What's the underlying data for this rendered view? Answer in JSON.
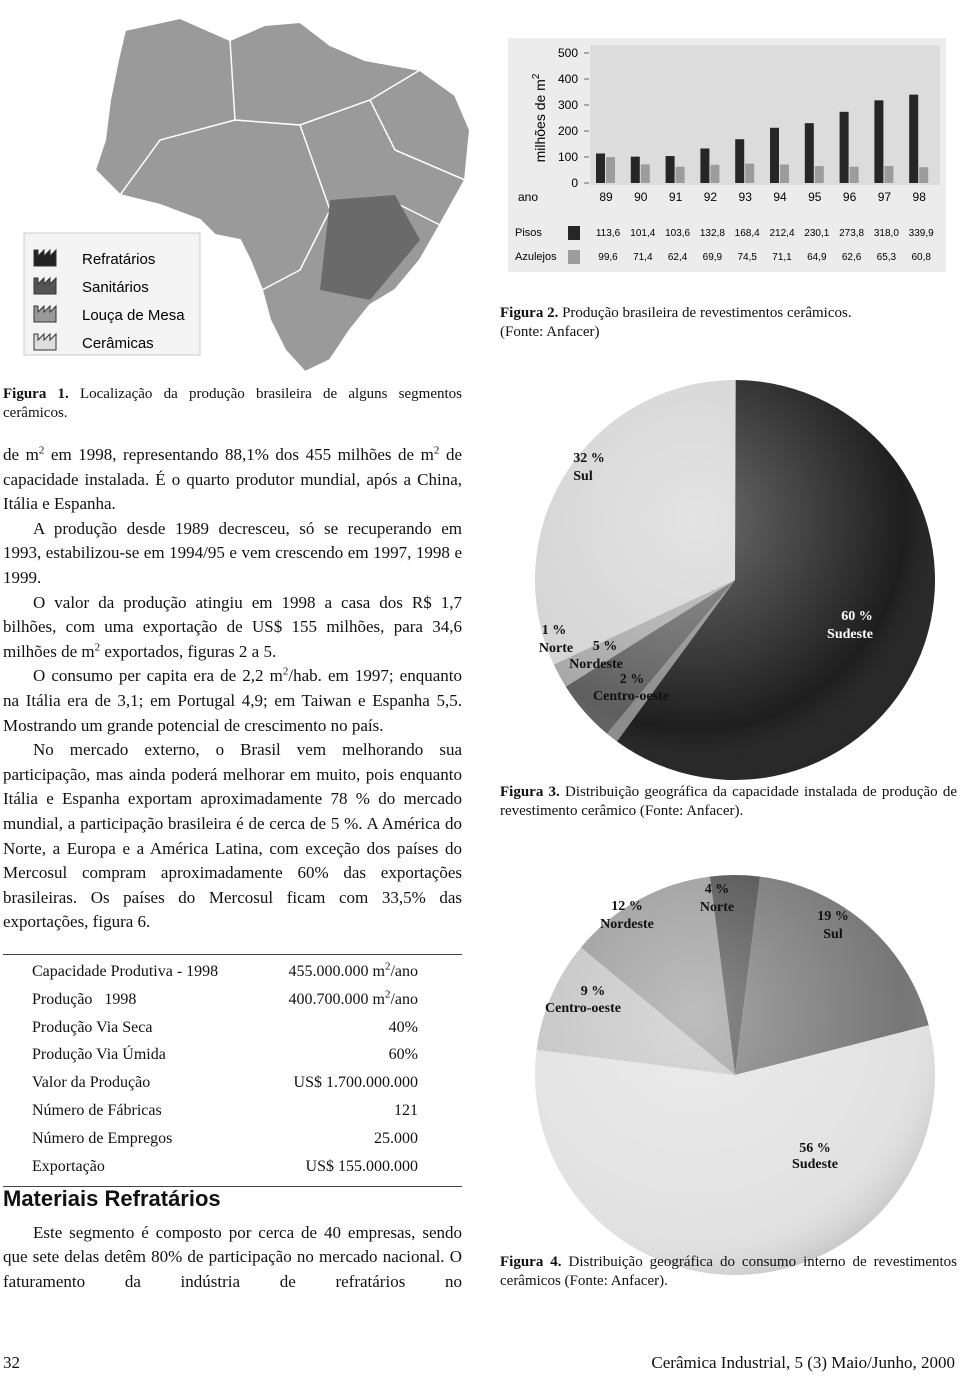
{
  "figure1": {
    "legend": [
      "Refratários",
      "Sanitários",
      "Louça de Mesa",
      "Cerâmicas"
    ],
    "caption_label": "Figura 1.",
    "caption": "Localização da produção brasileira de alguns segmentos cerâmicos."
  },
  "chart_data": [
    {
      "type": "bar",
      "y_label": "milhões de m",
      "y_label_sup": "2",
      "x_label": "ano",
      "categories": [
        "89",
        "90",
        "91",
        "92",
        "93",
        "94",
        "95",
        "96",
        "97",
        "98"
      ],
      "series": [
        {
          "name": "Pisos",
          "color": "#262626",
          "values": [
            113.6,
            101.4,
            103.6,
            132.8,
            168.4,
            212.4,
            230.1,
            273.8,
            318.0,
            339.9
          ],
          "value_labels": [
            "113,6",
            "101,4",
            "103,6",
            "132,8",
            "168,4",
            "212,4",
            "230,1",
            "273,8",
            "318,0",
            "339,9"
          ]
        },
        {
          "name": "Azulejos",
          "color": "#9c9c9c",
          "values": [
            99.6,
            71.4,
            62.4,
            69.9,
            74.5,
            71.1,
            64.9,
            62.6,
            65.3,
            60.8
          ],
          "value_labels": [
            "99,6",
            "71,4",
            "62,4",
            "69,9",
            "74,5",
            "71,1",
            "64,9",
            "62,6",
            "65,3",
            "60,8"
          ]
        }
      ],
      "ylim": [
        0,
        500
      ],
      "yticks": [
        0,
        100,
        200,
        300,
        400,
        500
      ],
      "caption_label": "Figura 2.",
      "caption": "Produção brasileira de revestimentos cerâmicos.",
      "caption_source": "(Fonte: Anfacer)"
    },
    {
      "type": "pie",
      "categories": [
        "Sul",
        "Sudeste",
        "Norte",
        "Nordeste",
        "Centro-oeste"
      ],
      "values": [
        32,
        60,
        1,
        5,
        2
      ],
      "value_labels": [
        "32 %",
        "60 %",
        "1 %",
        "5 %",
        "2 %"
      ],
      "colors": [
        "#d4d4d4",
        "#1e1e1e",
        "#8a8a8a",
        "#5e5e5e",
        "#a8a8a8"
      ],
      "caption_label": "Figura 3.",
      "caption": "Distribuição geográfica da capacidade instalada de produção de revestimento cerâmico (Fonte: Anfacer)."
    },
    {
      "type": "pie",
      "categories": [
        "Nordeste",
        "Norte",
        "Sul",
        "Centro-oeste",
        "Sudeste"
      ],
      "values": [
        12,
        4,
        19,
        9,
        56
      ],
      "value_labels": [
        "12 %",
        "4 %",
        "19 %",
        "9 %",
        "56 %"
      ],
      "colors": [
        "#9a9a9a",
        "#4e4e4e",
        "#767676",
        "#c4c4c4",
        "#e2e2e2"
      ],
      "caption_label": "Figura 4.",
      "caption": "Distribuição geográfica do consumo interno de revestimentos cerâmicos (Fonte: Anfacer)."
    }
  ],
  "paragraphs": [
    [
      "de m",
      "2",
      " em 1998, representando 88,1% dos 455 milhões de m",
      "2",
      " de capacidade instalada. É o quarto produtor mundial, após a China, Itália e Espanha."
    ],
    [
      "A produção desde 1989 decresceu, só se recuperando em 1993, estabilizou-se em 1994/95 e vem crescendo em 1997, 1998 e 1999."
    ],
    [
      "O valor da produção atingiu em 1998 a casa dos R$ 1,7 bilhões, com uma exportação de US$ 155 milhões, para 34,6 milhões de m",
      "2",
      " exportados, figuras 2 a 5."
    ],
    [
      "O consumo per capita era de 2,2 m",
      "2",
      "/hab. em 1997; enquanto na Itália era de 3,1; em Portugal 4,9; em Taiwan e Espanha 5,5. Mostrando um grande potencial de crescimento no país."
    ],
    [
      "No mercado externo, o Brasil vem melhorando sua participação, mas ainda poderá melhorar em muito, pois enquanto Itália e Espanha exportam aproximadamente 78 % do mercado mundial, a participação brasileira é de cerca de 5 %. A América do Norte, a Europa e a América Latina, com exceção dos países do Mercosul compram aproximadamente 60% das exportações brasileiras. Os países do Mercosul ficam com 33,5% das exportações, figura 6."
    ]
  ],
  "table": {
    "rows": [
      {
        "label": "Capacidade Produtiva - 1998",
        "value": [
          "455.000.000 m",
          "2",
          "/ano"
        ]
      },
      {
        "label": "Produção   1998",
        "value": [
          "400.700.000 m",
          "2",
          "/ano"
        ]
      },
      {
        "label": "Produção Via Seca",
        "value": [
          "40%"
        ]
      },
      {
        "label": "Produção Via Úmida",
        "value": [
          "60%"
        ]
      },
      {
        "label": "Valor da Produção",
        "value": [
          "US$ 1.700.000.000"
        ]
      },
      {
        "label": "Número de Fábricas",
        "value": [
          "121"
        ]
      },
      {
        "label": "Número de Empregos",
        "value": [
          "25.000"
        ]
      },
      {
        "label": "Exportação",
        "value": [
          "US$ 155.000.000"
        ]
      }
    ]
  },
  "section": {
    "heading": "Materiais Refratários",
    "paragraph": "Este segmento é composto por cerca de 40 empresas, sendo que sete delas detêm 80% de participação no mercado nacional. O faturamento da indústria de refratários no"
  },
  "footer": {
    "page": "32",
    "journal": "Cerâmica Industrial, 5 (3) Maio/Junho, 2000"
  }
}
